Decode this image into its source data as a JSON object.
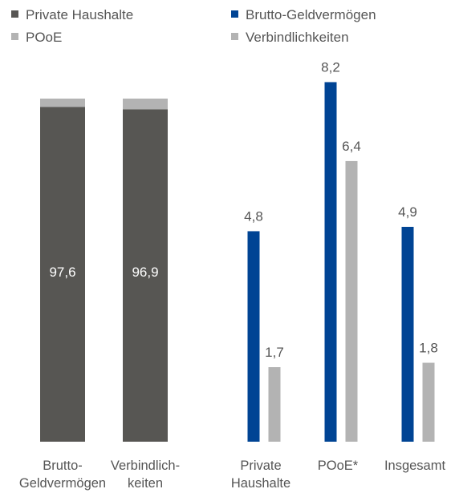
{
  "chart_data": [
    {
      "type": "bar",
      "stacked": true,
      "percent": true,
      "categories": [
        "Brutto-\nGeldvermögen",
        "Verbindlich-\nkeiten"
      ],
      "series": [
        {
          "name": "Private Haushalte",
          "values": [
            97.6,
            96.9
          ],
          "color": "#575653"
        },
        {
          "name": "POoE",
          "values": [
            2.4,
            3.1
          ],
          "color": "#b3b3b3"
        }
      ],
      "ylim": [
        0,
        100
      ],
      "legend": "top-left",
      "grid": false
    },
    {
      "type": "bar",
      "categories": [
        "Private\nHaushalte",
        "POoE*",
        "Insgesamt"
      ],
      "series": [
        {
          "name": "Brutto-Geldvermögen",
          "values": [
            4.8,
            8.2,
            4.9
          ],
          "color": "#004494"
        },
        {
          "name": "Verbindlichkeiten",
          "values": [
            1.7,
            6.4,
            1.8
          ],
          "color": "#b3b3b3"
        }
      ],
      "ylim": [
        0,
        9.0
      ],
      "legend": "top-right",
      "grid": false
    }
  ]
}
